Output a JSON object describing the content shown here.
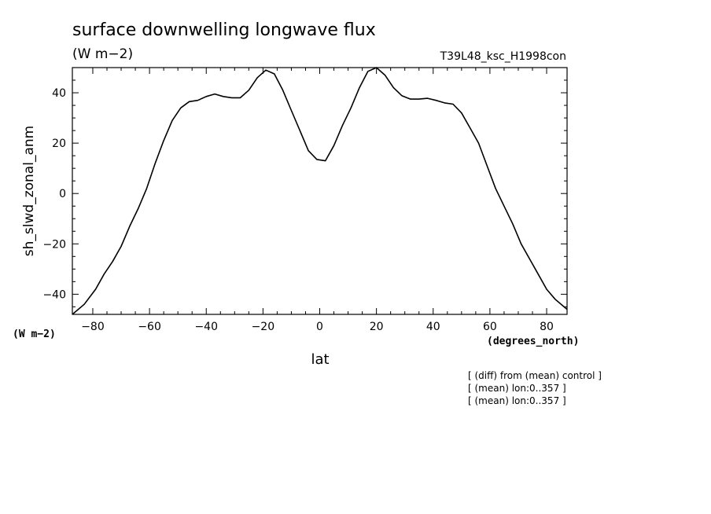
{
  "title": "surface downwelling longwave flux",
  "units_label": "(W m−2)",
  "experiment_label": "T39L48_ksc_H1998con",
  "ylabel": "sh_slwd_zonal_anm",
  "y_units": "(W m−2)",
  "xlabel": "lat",
  "x_units": "(degrees_north)",
  "notes": [
    "[ (diff) from (mean) control ]",
    "[ (mean) lon:0..357 ]",
    "[ (mean) lon:0..357 ]"
  ],
  "chart_data": {
    "type": "line",
    "title": "surface downwelling longwave flux",
    "xlabel": "lat",
    "ylabel": "sh_slwd_zonal_anm",
    "xlim": [
      -87.2,
      87.2
    ],
    "ylim": [
      -48,
      50
    ],
    "xticks": [
      -80,
      -60,
      -40,
      -20,
      0,
      20,
      40,
      60,
      80
    ],
    "xtick_labels": [
      "−80",
      "−60",
      "−40",
      "−20",
      "0",
      "20",
      "40",
      "60",
      "80"
    ],
    "yticks": [
      -40,
      -20,
      0,
      20,
      40
    ],
    "ytick_labels": [
      "−40",
      "−20",
      "0",
      "20",
      "40"
    ],
    "grid": false,
    "series": [
      {
        "x": [
          -87.2,
          -83,
          -79,
          -76,
          -73,
          -70,
          -67,
          -64,
          -61,
          -58,
          -55,
          -52,
          -49,
          -46,
          -43,
          -40,
          -37,
          -34,
          -31,
          -28,
          -25,
          -22,
          -19,
          -16,
          -13,
          -10,
          -7,
          -4,
          -1,
          2,
          5,
          8,
          11,
          14,
          17,
          20,
          23,
          26,
          29,
          32,
          35,
          38,
          41,
          44,
          47,
          50,
          53,
          56,
          59,
          62,
          65,
          68,
          71,
          74,
          77,
          80,
          83,
          87.2
        ],
        "y": [
          -48,
          -44,
          -38,
          -32,
          -27,
          -21,
          -13,
          -6,
          2,
          12,
          21,
          29,
          34,
          36.5,
          37,
          38.5,
          39.5,
          38.5,
          38,
          38,
          41,
          46,
          49,
          47.5,
          41,
          33,
          25,
          17,
          13.5,
          13,
          19,
          27,
          34,
          42,
          48.5,
          50,
          47,
          42,
          38.8,
          37.5,
          37.5,
          37.8,
          37,
          36,
          35.5,
          32,
          26,
          20,
          11,
          2,
          -5,
          -12,
          -20,
          -26,
          -32,
          -38,
          -42,
          -46
        ]
      }
    ]
  }
}
